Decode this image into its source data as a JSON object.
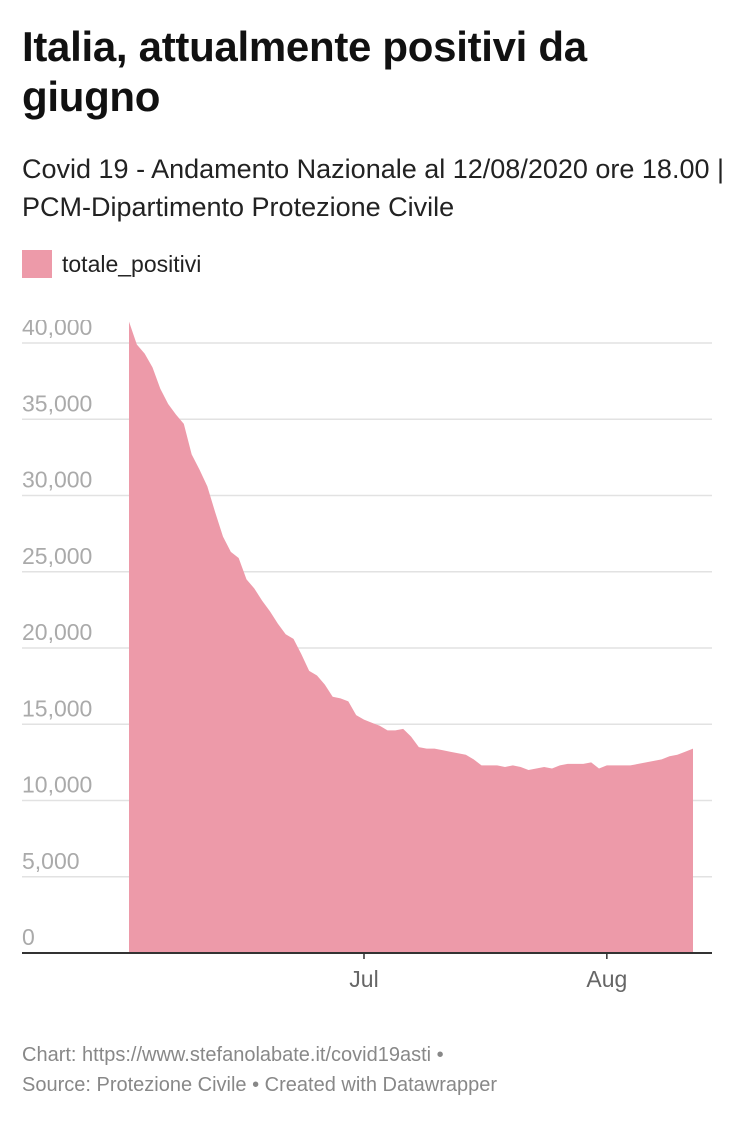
{
  "chart_data": {
    "type": "area",
    "title": "Italia, attualmente positivi da giugno",
    "subtitle": "Covid 19 - Andamento Nazionale al 12/08/2020 ore 18.00 | PCM-Dipartimento Protezione Civile",
    "series": [
      {
        "name": "totale_positivi",
        "color": "#ed9aa9",
        "x": [
          "2020-06-01",
          "2020-06-02",
          "2020-06-03",
          "2020-06-04",
          "2020-06-05",
          "2020-06-06",
          "2020-06-07",
          "2020-06-08",
          "2020-06-09",
          "2020-06-10",
          "2020-06-11",
          "2020-06-12",
          "2020-06-13",
          "2020-06-14",
          "2020-06-15",
          "2020-06-16",
          "2020-06-17",
          "2020-06-18",
          "2020-06-19",
          "2020-06-20",
          "2020-06-21",
          "2020-06-22",
          "2020-06-23",
          "2020-06-24",
          "2020-06-25",
          "2020-06-26",
          "2020-06-27",
          "2020-06-28",
          "2020-06-29",
          "2020-06-30",
          "2020-07-01",
          "2020-07-02",
          "2020-07-03",
          "2020-07-04",
          "2020-07-05",
          "2020-07-06",
          "2020-07-07",
          "2020-07-08",
          "2020-07-09",
          "2020-07-10",
          "2020-07-11",
          "2020-07-12",
          "2020-07-13",
          "2020-07-14",
          "2020-07-15",
          "2020-07-16",
          "2020-07-17",
          "2020-07-18",
          "2020-07-19",
          "2020-07-20",
          "2020-07-21",
          "2020-07-22",
          "2020-07-23",
          "2020-07-24",
          "2020-07-25",
          "2020-07-26",
          "2020-07-27",
          "2020-07-28",
          "2020-07-29",
          "2020-07-30",
          "2020-07-31",
          "2020-08-01",
          "2020-08-02",
          "2020-08-03",
          "2020-08-04",
          "2020-08-05",
          "2020-08-06",
          "2020-08-07",
          "2020-08-08",
          "2020-08-09",
          "2020-08-10",
          "2020-08-11",
          "2020-08-12"
        ],
        "values": [
          41400,
          39900,
          39300,
          38400,
          37000,
          36000,
          35300,
          34700,
          32700,
          31700,
          30600,
          28900,
          27300,
          26300,
          25900,
          24500,
          23900,
          23100,
          22400,
          21600,
          20900,
          20600,
          19600,
          18500,
          18200,
          17600,
          16800,
          16700,
          16500,
          15600,
          15300,
          15100,
          14900,
          14600,
          14600,
          14700,
          14200,
          13500,
          13400,
          13400,
          13300,
          13200,
          13100,
          13000,
          12700,
          12300,
          12300,
          12300,
          12200,
          12300,
          12200,
          12000,
          12100,
          12200,
          12100,
          12300,
          12400,
          12400,
          12400,
          12500,
          12100,
          12300,
          12300,
          12300,
          12300,
          12400,
          12500,
          12600,
          12700,
          12900,
          13000,
          13200,
          13400
        ]
      }
    ],
    "xaxis": {
      "ticks": [
        {
          "date": "2020-07-01",
          "label": "Jul"
        },
        {
          "date": "2020-08-01",
          "label": "Aug"
        }
      ]
    },
    "yaxis": {
      "ticks": [
        0,
        5000,
        10000,
        15000,
        20000,
        25000,
        30000,
        35000,
        40000
      ],
      "tick_labels": [
        "0",
        "5,000",
        "10,000",
        "15,000",
        "20,000",
        "25,000",
        "30,000",
        "35,000",
        "40,000"
      ],
      "ylim": [
        0,
        40000
      ]
    },
    "grid": true,
    "legend_position": "top-left"
  },
  "footer": {
    "line1": "Chart: https://www.stefanolabate.it/covid19asti •",
    "line2": "Source: Protezione Civile • Created with Datawrapper"
  }
}
